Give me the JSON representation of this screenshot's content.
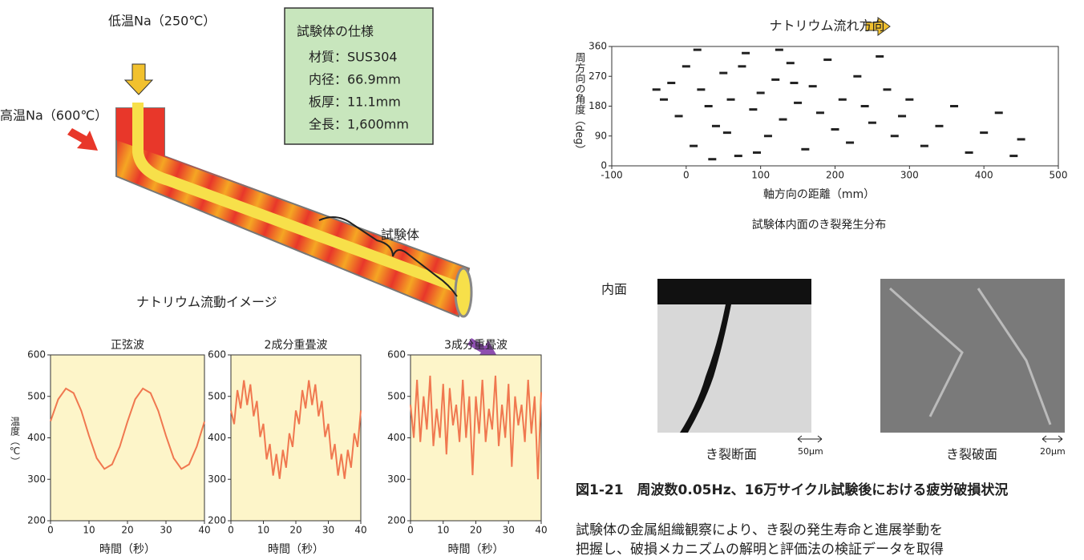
{
  "diagram": {
    "cold_inlet": "低温Na（250℃）",
    "hot_inlet": "高温Na（600℃）",
    "specimen": "試験体",
    "caption": "ナトリウム流動イメージ"
  },
  "spec": {
    "title": "試験体の仕様",
    "rows": [
      "材質：SUS304",
      "内径：66.9mm",
      "板厚：11.1mm",
      "全長：1,600mm"
    ]
  },
  "chart_data": [
    {
      "type": "line",
      "title": "正弦波",
      "ylabel": "温度（℃）",
      "xlabel": "時間（秒）",
      "color": "#f07850",
      "x": [
        0,
        2,
        4,
        6,
        8,
        10,
        12,
        14,
        16,
        18,
        20,
        22,
        24,
        26,
        28,
        30,
        32,
        34,
        36,
        38,
        40
      ],
      "values": [
        440,
        493,
        519,
        508,
        465,
        405,
        351,
        325,
        336,
        379,
        439,
        493,
        519,
        508,
        465,
        405,
        351,
        325,
        336,
        379,
        439
      ],
      "xlim": [
        0,
        40
      ],
      "ylim": [
        200,
        600
      ],
      "xticks": [
        0,
        10,
        20,
        30,
        40
      ],
      "yticks": [
        200,
        300,
        400,
        500,
        600
      ]
    },
    {
      "type": "line",
      "title": "2成分重畳波",
      "xlabel": "時間（秒）",
      "color": "#f07850",
      "x": [
        0,
        1,
        2,
        3,
        4,
        5,
        6,
        7,
        8,
        9,
        10,
        11,
        12,
        13,
        14,
        15,
        16,
        17,
        18,
        19,
        20,
        21,
        22,
        23,
        24,
        25,
        26,
        27,
        28,
        29,
        30,
        31,
        32,
        33,
        34,
        35,
        36,
        37,
        38,
        39,
        40
      ],
      "values": [
        466,
        433,
        515,
        471,
        539,
        479,
        529,
        452,
        489,
        402,
        434,
        348,
        385,
        309,
        361,
        301,
        371,
        328,
        411,
        378,
        466,
        433,
        515,
        471,
        539,
        479,
        529,
        452,
        489,
        402,
        434,
        348,
        385,
        309,
        361,
        301,
        371,
        328,
        411,
        378,
        466
      ],
      "xlim": [
        0,
        40
      ],
      "ylim": [
        200,
        600
      ],
      "xticks": [
        0,
        10,
        20,
        30,
        40
      ],
      "yticks": [
        200,
        300,
        400,
        500,
        600
      ]
    },
    {
      "type": "line",
      "title": "3成分重畳波",
      "xlabel": "時間（秒）",
      "color": "#f07850",
      "x": [
        0,
        1,
        2,
        3,
        4,
        5,
        6,
        7,
        8,
        9,
        10,
        11,
        12,
        13,
        14,
        15,
        16,
        17,
        18,
        19,
        20,
        21,
        22,
        23,
        24,
        25,
        26,
        27,
        28,
        29,
        30,
        31,
        32,
        33,
        34,
        35,
        36,
        37,
        38,
        39,
        40
      ],
      "values": [
        480,
        400,
        540,
        390,
        500,
        420,
        550,
        380,
        470,
        400,
        530,
        360,
        520,
        430,
        480,
        390,
        540,
        400,
        500,
        310,
        500,
        410,
        540,
        390,
        470,
        420,
        550,
        380,
        480,
        400,
        530,
        330,
        500,
        430,
        480,
        390,
        540,
        410,
        500,
        300,
        510
      ],
      "xlim": [
        0,
        40
      ],
      "ylim": [
        200,
        600
      ],
      "xticks": [
        0,
        10,
        20,
        30,
        40
      ],
      "yticks": [
        200,
        300,
        400,
        500,
        600
      ]
    },
    {
      "type": "scatter",
      "title": "ナトリウム流れ方向",
      "ylabel": "周方向の角度（deg）",
      "xlabel": "軸方向の距離（mm）",
      "caption": "試験体内面のき裂発生分布",
      "color": "#222222",
      "x": [
        -30,
        -20,
        -10,
        0,
        10,
        20,
        30,
        40,
        50,
        60,
        70,
        80,
        90,
        100,
        110,
        120,
        130,
        140,
        150,
        160,
        170,
        180,
        190,
        200,
        210,
        220,
        230,
        240,
        250,
        260,
        270,
        280,
        290,
        300,
        320,
        340,
        360,
        380,
        400,
        420,
        440,
        450,
        -40,
        15,
        35,
        55,
        75,
        95,
        125,
        145
      ],
      "y": [
        200,
        250,
        150,
        300,
        60,
        230,
        180,
        120,
        280,
        200,
        30,
        340,
        170,
        220,
        90,
        260,
        140,
        310,
        190,
        50,
        240,
        160,
        320,
        110,
        200,
        70,
        270,
        180,
        130,
        330,
        230,
        90,
        150,
        200,
        60,
        120,
        180,
        40,
        100,
        160,
        30,
        80,
        230,
        350,
        20,
        100,
        300,
        40,
        350,
        250
      ],
      "xlim": [
        -100,
        500
      ],
      "ylim": [
        0,
        360
      ],
      "xticks": [
        -100,
        0,
        100,
        200,
        300,
        400,
        500
      ],
      "yticks": [
        0,
        90,
        180,
        270,
        360
      ]
    }
  ],
  "micrographs": {
    "surface": "内面",
    "section": "き裂断面",
    "section_scale": "50μm",
    "fracture": "き裂破面",
    "fracture_scale": "20μm"
  },
  "caption": {
    "title": "図1-21　周波数0.05Hz、16万サイクル試験後における疲労破損状況",
    "lines": [
      "試験体の金属組織観察により、き裂の発生寿命と進展挙動を",
      "把握し、破損メカニズムの解明と評価法の検証データを取得"
    ]
  }
}
